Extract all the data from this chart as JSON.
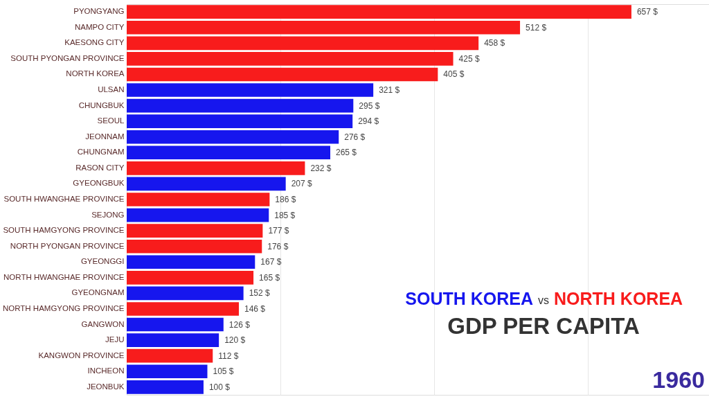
{
  "chart_data": {
    "type": "bar",
    "orientation": "horizontal",
    "title": "GDP PER CAPITA",
    "annotations": [
      "vs",
      "1960"
    ],
    "categories": [
      "PYONGYANG",
      "NAMPO CITY",
      "KAESONG CITY",
      "SOUTH PYONGAN PROVINCE",
      "NORTH KOREA",
      "ULSAN",
      "CHUNGBUK",
      "SEOUL",
      "JEONNAM",
      "CHUNGNAM",
      "RASON CITY",
      "GYEONGBUK",
      "SOUTH HWANGHAE PROVINCE",
      "SEJONG",
      "SOUTH HAMGYONG PROVINCE",
      "NORTH PYONGAN PROVINCE",
      "GYEONGGI",
      "NORTH HWANGHAE PROVINCE",
      "GYEONGNAM",
      "NORTH HAMGYONG PROVINCE",
      "GANGWON",
      "JEJU",
      "KANGWON PROVINCE",
      "INCHEON",
      "JEONBUK"
    ],
    "series": [
      {
        "name": "SOUTH KOREA",
        "color": "#1616ee",
        "values": [
          null,
          null,
          null,
          null,
          null,
          321,
          295,
          294,
          276,
          265,
          null,
          207,
          null,
          185,
          null,
          null,
          167,
          null,
          152,
          null,
          126,
          120,
          null,
          105,
          100
        ],
        "value_labels": [
          null,
          null,
          null,
          null,
          null,
          "321 $",
          "295 $",
          "294 $",
          "276 $",
          "265 $",
          null,
          "207 $",
          null,
          "185 $",
          null,
          null,
          "167 $",
          null,
          "152 $",
          null,
          "126 $",
          "120 $",
          null,
          "105 $",
          "100 $"
        ]
      },
      {
        "name": "NORTH KOREA",
        "color": "#f81c1c",
        "values": [
          657,
          512,
          458,
          425,
          405,
          null,
          null,
          null,
          null,
          null,
          232,
          null,
          186,
          null,
          177,
          176,
          null,
          165,
          null,
          146,
          null,
          null,
          112,
          null,
          null
        ],
        "value_labels": [
          "657 $",
          "512 $",
          "458 $",
          "425 $",
          "405 $",
          null,
          null,
          null,
          null,
          null,
          "232 $",
          null,
          "186 $",
          null,
          "177 $",
          "176 $",
          null,
          "165 $",
          null,
          "146 $",
          null,
          null,
          "112 $",
          null,
          null
        ]
      }
    ],
    "xlim": [
      0,
      758
    ],
    "xticks": [
      {
        "value": 200,
        "label": null
      },
      {
        "value": 400,
        "label": null
      },
      {
        "value": 600,
        "label": null
      }
    ],
    "grid": "x",
    "tick_labels": "y"
  }
}
